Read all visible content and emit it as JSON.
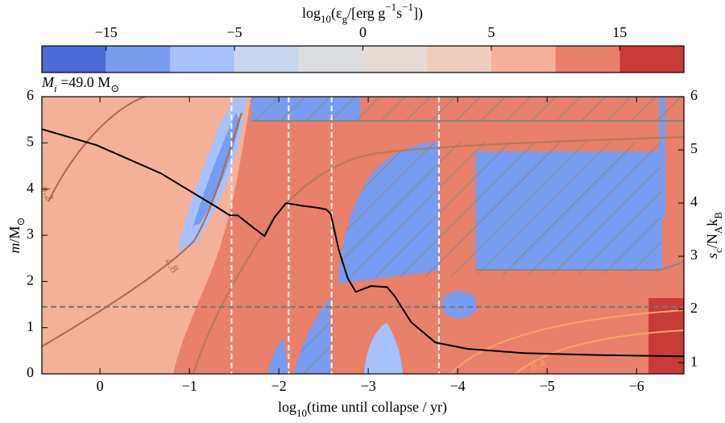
{
  "chart_data": {
    "type": "line",
    "colorbar": {
      "label": [
        {
          "text": "log"
        },
        {
          "text": "10",
          "sub": true
        },
        {
          "text": "(ε"
        },
        {
          "text": "g",
          "sub": true
        },
        {
          "text": "/[erg g"
        },
        {
          "text": "−1",
          "sup": true
        },
        {
          "text": "s"
        },
        {
          "text": "−1",
          "sup": true
        },
        {
          "text": "])"
        }
      ],
      "boundaries": [
        -20,
        -15,
        -10,
        -5,
        -2.5,
        0,
        2.5,
        5,
        10,
        15,
        20
      ],
      "colors": [
        "#4b6bd6",
        "#789cf0",
        "#a6c1fb",
        "#c7d5ee",
        "#dcdde1",
        "#e6dad4",
        "#efcdbc",
        "#f5b09a",
        "#e98069",
        "#c83b36"
      ],
      "ticks": [
        {
          "value": -15,
          "label": "−15"
        },
        {
          "value": -5,
          "label": "−5"
        },
        0,
        5,
        15
      ]
    },
    "model_label": [
      {
        "text": "M",
        "italic": true
      },
      {
        "text": "i",
        "sub": true,
        "italic": true
      },
      {
        "text": " =49.0 M"
      },
      {
        "text": "⊙",
        "sub": true
      }
    ],
    "xlabel": [
      {
        "text": "log"
      },
      {
        "text": "10",
        "sub": true
      },
      {
        "text": "(time until collapse / yr)"
      }
    ],
    "ylabel": [
      {
        "text": "m",
        "italic": true
      },
      {
        "text": "/M"
      },
      {
        "text": "⊙",
        "sub": true
      }
    ],
    "y2label": [
      {
        "text": "s",
        "italic": true
      },
      {
        "text": "c",
        "sub": true
      },
      {
        "text": "/N"
      },
      {
        "text": "A",
        "sub": true
      },
      {
        "text": "k"
      },
      {
        "text": "B",
        "sub": true
      }
    ],
    "xlim": [
      0.65,
      -6.53
    ],
    "xticks": [
      0,
      {
        "value": -1,
        "label": "−1"
      },
      {
        "value": -2,
        "label": "−2"
      },
      {
        "value": -3,
        "label": "−3"
      },
      {
        "value": -4,
        "label": "−4"
      },
      {
        "value": -5,
        "label": "−5"
      },
      {
        "value": -6,
        "label": "−6"
      }
    ],
    "ylim": [
      0,
      6
    ],
    "yticks": [
      0,
      1,
      2,
      3,
      4,
      5,
      6
    ],
    "y2lim": [
      0.79,
      6
    ],
    "y2ticks": [
      1,
      2,
      3,
      4,
      5,
      6
    ],
    "x": [
      0.65,
      0.04,
      -0.68,
      -1.32,
      -1.45,
      -1.54,
      -1.72,
      -1.84,
      -1.95,
      -2.08,
      -2.26,
      -2.44,
      -2.53,
      -2.58,
      -2.67,
      -2.77,
      -2.86,
      -3.03,
      -3.21,
      -3.3,
      -3.48,
      -3.75,
      -4.11,
      -4.74,
      -5.64,
      -6.53
    ],
    "series": [
      {
        "color": "#000000",
        "axis": "y2",
        "values": [
          5.39,
          5.09,
          4.56,
          3.91,
          3.77,
          3.77,
          3.53,
          3.38,
          3.73,
          4.0,
          3.95,
          3.91,
          3.88,
          3.8,
          3.12,
          2.59,
          2.33,
          2.44,
          2.42,
          2.24,
          1.76,
          1.38,
          1.26,
          1.18,
          1.14,
          1.12
        ]
      }
    ],
    "vlines": [
      -1.47,
      -2.11,
      -2.59,
      -3.79
    ],
    "hline": 1.45,
    "contour_labels": [
      "4.2",
      "4.8",
      "8.4"
    ]
  }
}
